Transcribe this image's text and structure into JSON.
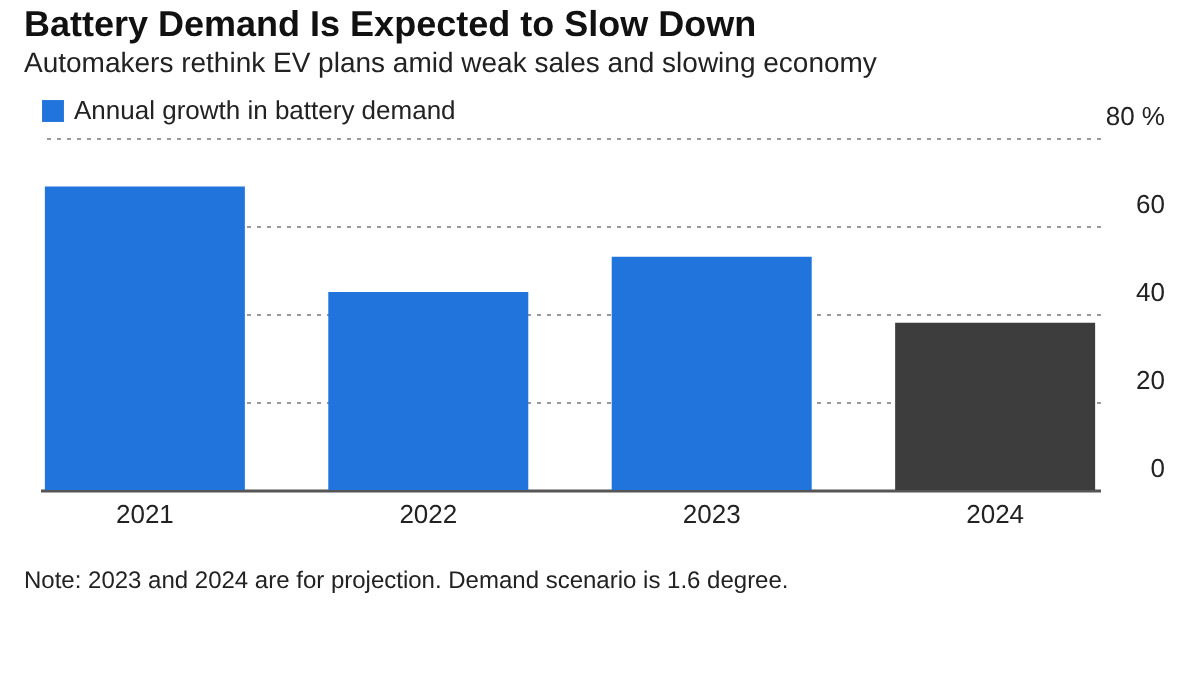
{
  "chart_data": {
    "type": "bar",
    "title": "Battery Demand Is Expected to Slow Down",
    "subtitle": "Automakers rethink EV plans amid weak sales and slowing economy",
    "categories": [
      "2021",
      "2022",
      "2023",
      "2024"
    ],
    "series": [
      {
        "name": "Annual growth in battery demand",
        "color": "#2174db",
        "values": [
          69,
          45,
          53,
          null
        ]
      },
      {
        "color": "#3d3d3d",
        "values": [
          null,
          null,
          null,
          38
        ]
      }
    ],
    "ylim": [
      0,
      80
    ],
    "yticks": [
      0,
      20,
      40,
      60,
      {
        "value": 80,
        "label": "80 %"
      }
    ],
    "grid": "y",
    "legend": "top left",
    "annotations": [
      "Note: 2023 and 2024 are for projection. Demand scenario is 1.6 degree."
    ]
  }
}
